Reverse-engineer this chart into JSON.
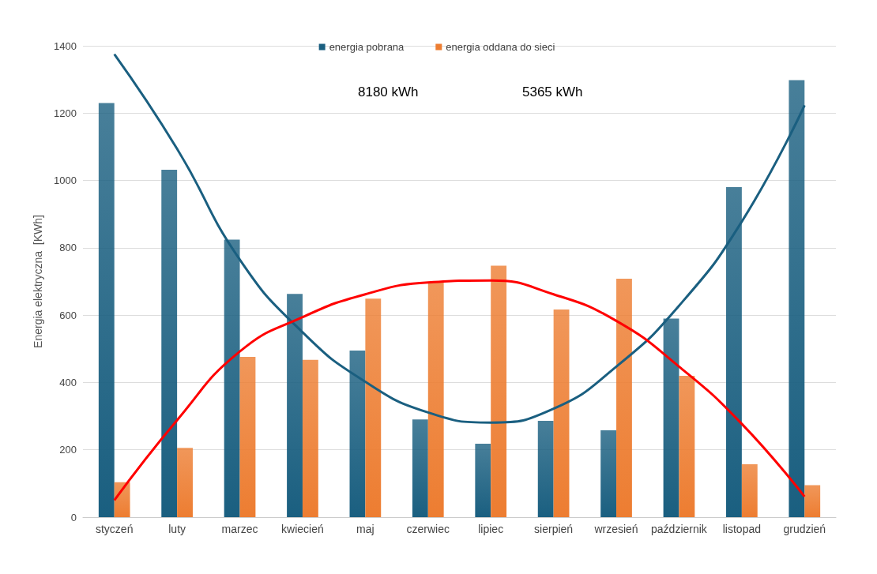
{
  "chart_data": {
    "type": "bar",
    "ylabel": "Energia elektryczna  [KWh]",
    "categories": [
      "styczeń",
      "luty",
      "marzec",
      "kwiecień",
      "maj",
      "czerwiec",
      "lipiec",
      "sierpień",
      "wrzesień",
      "październik",
      "listopad",
      "grudzień"
    ],
    "series": [
      {
        "name": "energia pobrana",
        "color": "#1a5f80",
        "values": [
          1230,
          1032,
          824,
          663,
          495,
          290,
          218,
          286,
          258,
          590,
          980,
          1298
        ]
      },
      {
        "name": "energia oddana do sieci",
        "color": "#ed7d31",
        "values": [
          104,
          206,
          476,
          467,
          649,
          699,
          747,
          617,
          708,
          420,
          157,
          95
        ]
      },
      {
        "type": "line",
        "color": "#1a5f80",
        "x": [
          "styczeń",
          "luty",
          "marzec",
          "kwiecień",
          "maj",
          "czerwiec",
          "lipiec",
          "sierpień",
          "wrzesień",
          "październik",
          "listopad",
          "grudzień"
        ],
        "values": [
          1375,
          1094,
          765,
          549,
          402,
          311,
          281,
          322,
          447,
          628,
          878,
          1223
        ]
      },
      {
        "type": "line",
        "color": "#ff0000",
        "x": [
          "styczeń",
          "luty",
          "marzec",
          "kwiecień",
          "maj",
          "czerwiec",
          "lipiec",
          "sierpień",
          "wrzesień",
          "październik",
          "listopad",
          "grudzień"
        ],
        "values": [
          50,
          288,
          492,
          594,
          662,
          697,
          703,
          662,
          583,
          447,
          277,
          61
        ]
      }
    ],
    "annotations": [
      "8180 kWh",
      "5365 kWh"
    ],
    "ylim": [
      0,
      1400
    ],
    "yticks": [
      0,
      200,
      400,
      600,
      800,
      1000,
      1200,
      1400
    ],
    "grid": "y",
    "legend": "top",
    "marker": "none"
  }
}
